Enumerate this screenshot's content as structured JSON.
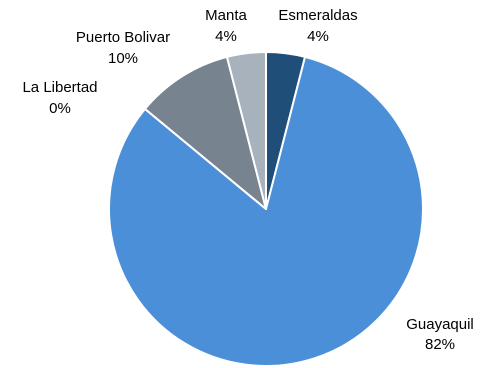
{
  "chart_data": {
    "type": "pie",
    "slices": [
      {
        "label": "Esmeraldas",
        "value": 4,
        "value_label": "4%",
        "color": "#1f4e79"
      },
      {
        "label": "Guayaquil",
        "value": 82,
        "value_label": "82%",
        "color": "#4a8fd8"
      },
      {
        "label": "La Libertad",
        "value": 0,
        "value_label": "0%",
        "color": "#8c97a2"
      },
      {
        "label": "Puerto Bolivar",
        "value": 10,
        "value_label": "10%",
        "color": "#77838f"
      },
      {
        "label": "Manta",
        "value": 4,
        "value_label": "4%",
        "color": "#a7b2bc"
      }
    ],
    "start_angle_deg": 0,
    "direction": "clockwise",
    "legend": "none"
  }
}
